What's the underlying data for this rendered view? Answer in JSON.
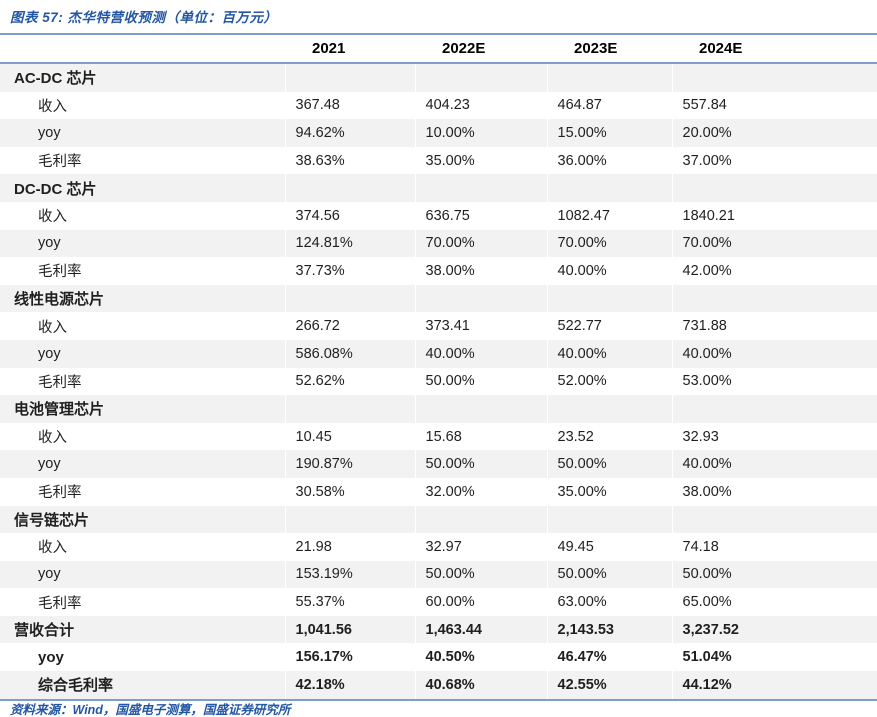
{
  "title": "图表 57: 杰华特营收预测（单位：百万元）",
  "footer": "资料来源：Wind，国盛电子测算，国盛证券研究所",
  "colors": {
    "accent_blue": "#2457a3",
    "border_blue": "#7e9dc8",
    "stripe_gray": "#f2f2f2"
  },
  "table": {
    "columns": [
      "",
      "2021",
      "2022E",
      "2023E",
      "2024E"
    ],
    "sections": [
      {
        "name": "AC-DC 芯片",
        "rows": [
          {
            "label": "收入",
            "values": [
              "367.48",
              "404.23",
              "464.87",
              "557.84"
            ]
          },
          {
            "label": "yoy",
            "values": [
              "94.62%",
              "10.00%",
              "15.00%",
              "20.00%"
            ]
          },
          {
            "label": "毛利率",
            "values": [
              "38.63%",
              "35.00%",
              "36.00%",
              "37.00%"
            ]
          }
        ]
      },
      {
        "name": "DC-DC 芯片",
        "rows": [
          {
            "label": "收入",
            "values": [
              "374.56",
              "636.75",
              "1082.47",
              "1840.21"
            ]
          },
          {
            "label": "yoy",
            "values": [
              "124.81%",
              "70.00%",
              "70.00%",
              "70.00%"
            ]
          },
          {
            "label": "毛利率",
            "values": [
              "37.73%",
              "38.00%",
              "40.00%",
              "42.00%"
            ]
          }
        ]
      },
      {
        "name": "线性电源芯片",
        "rows": [
          {
            "label": "收入",
            "values": [
              "266.72",
              "373.41",
              "522.77",
              "731.88"
            ]
          },
          {
            "label": "yoy",
            "values": [
              "586.08%",
              "40.00%",
              "40.00%",
              "40.00%"
            ]
          },
          {
            "label": "毛利率",
            "values": [
              "52.62%",
              "50.00%",
              "52.00%",
              "53.00%"
            ]
          }
        ]
      },
      {
        "name": "电池管理芯片",
        "rows": [
          {
            "label": "收入",
            "values": [
              "10.45",
              "15.68",
              "23.52",
              "32.93"
            ]
          },
          {
            "label": "yoy",
            "values": [
              "190.87%",
              "50.00%",
              "50.00%",
              "40.00%"
            ]
          },
          {
            "label": "毛利率",
            "values": [
              "30.58%",
              "32.00%",
              "35.00%",
              "38.00%"
            ]
          }
        ]
      },
      {
        "name": "信号链芯片",
        "rows": [
          {
            "label": "收入",
            "values": [
              "21.98",
              "32.97",
              "49.45",
              "74.18"
            ]
          },
          {
            "label": "yoy",
            "values": [
              "153.19%",
              "50.00%",
              "50.00%",
              "50.00%"
            ]
          },
          {
            "label": "毛利率",
            "values": [
              "55.37%",
              "60.00%",
              "63.00%",
              "65.00%"
            ]
          }
        ]
      }
    ],
    "summary": [
      {
        "label": "营收合计",
        "indent": false,
        "values": [
          "1,041.56",
          "1,463.44",
          "2,143.53",
          "3,237.52"
        ]
      },
      {
        "label": "yoy",
        "indent": true,
        "values": [
          "156.17%",
          "40.50%",
          "46.47%",
          "51.04%"
        ]
      },
      {
        "label": "综合毛利率",
        "indent": true,
        "values": [
          "42.18%",
          "40.68%",
          "42.55%",
          "44.12%"
        ]
      }
    ]
  }
}
